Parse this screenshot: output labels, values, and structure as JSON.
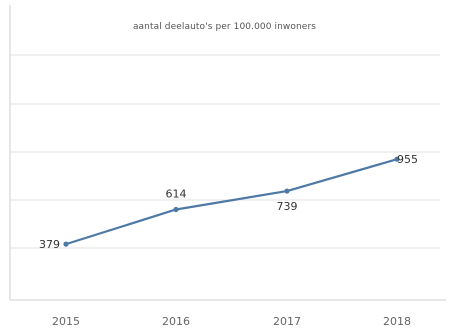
{
  "chart_data": {
    "type": "line",
    "title": "aantal deelauto's per 100.000 inwoners",
    "x": [
      "2015",
      "2016",
      "2017",
      "2018"
    ],
    "series": [
      {
        "values": [
          379,
          614,
          739,
          955
        ]
      }
    ],
    "xlabel": "",
    "ylabel": "",
    "ylim": [
      0,
      1750
    ],
    "grid": true,
    "colors": {
      "line": "#4e79a7",
      "grid": "#e2e2e2",
      "axis": "#cfcfcf"
    }
  }
}
